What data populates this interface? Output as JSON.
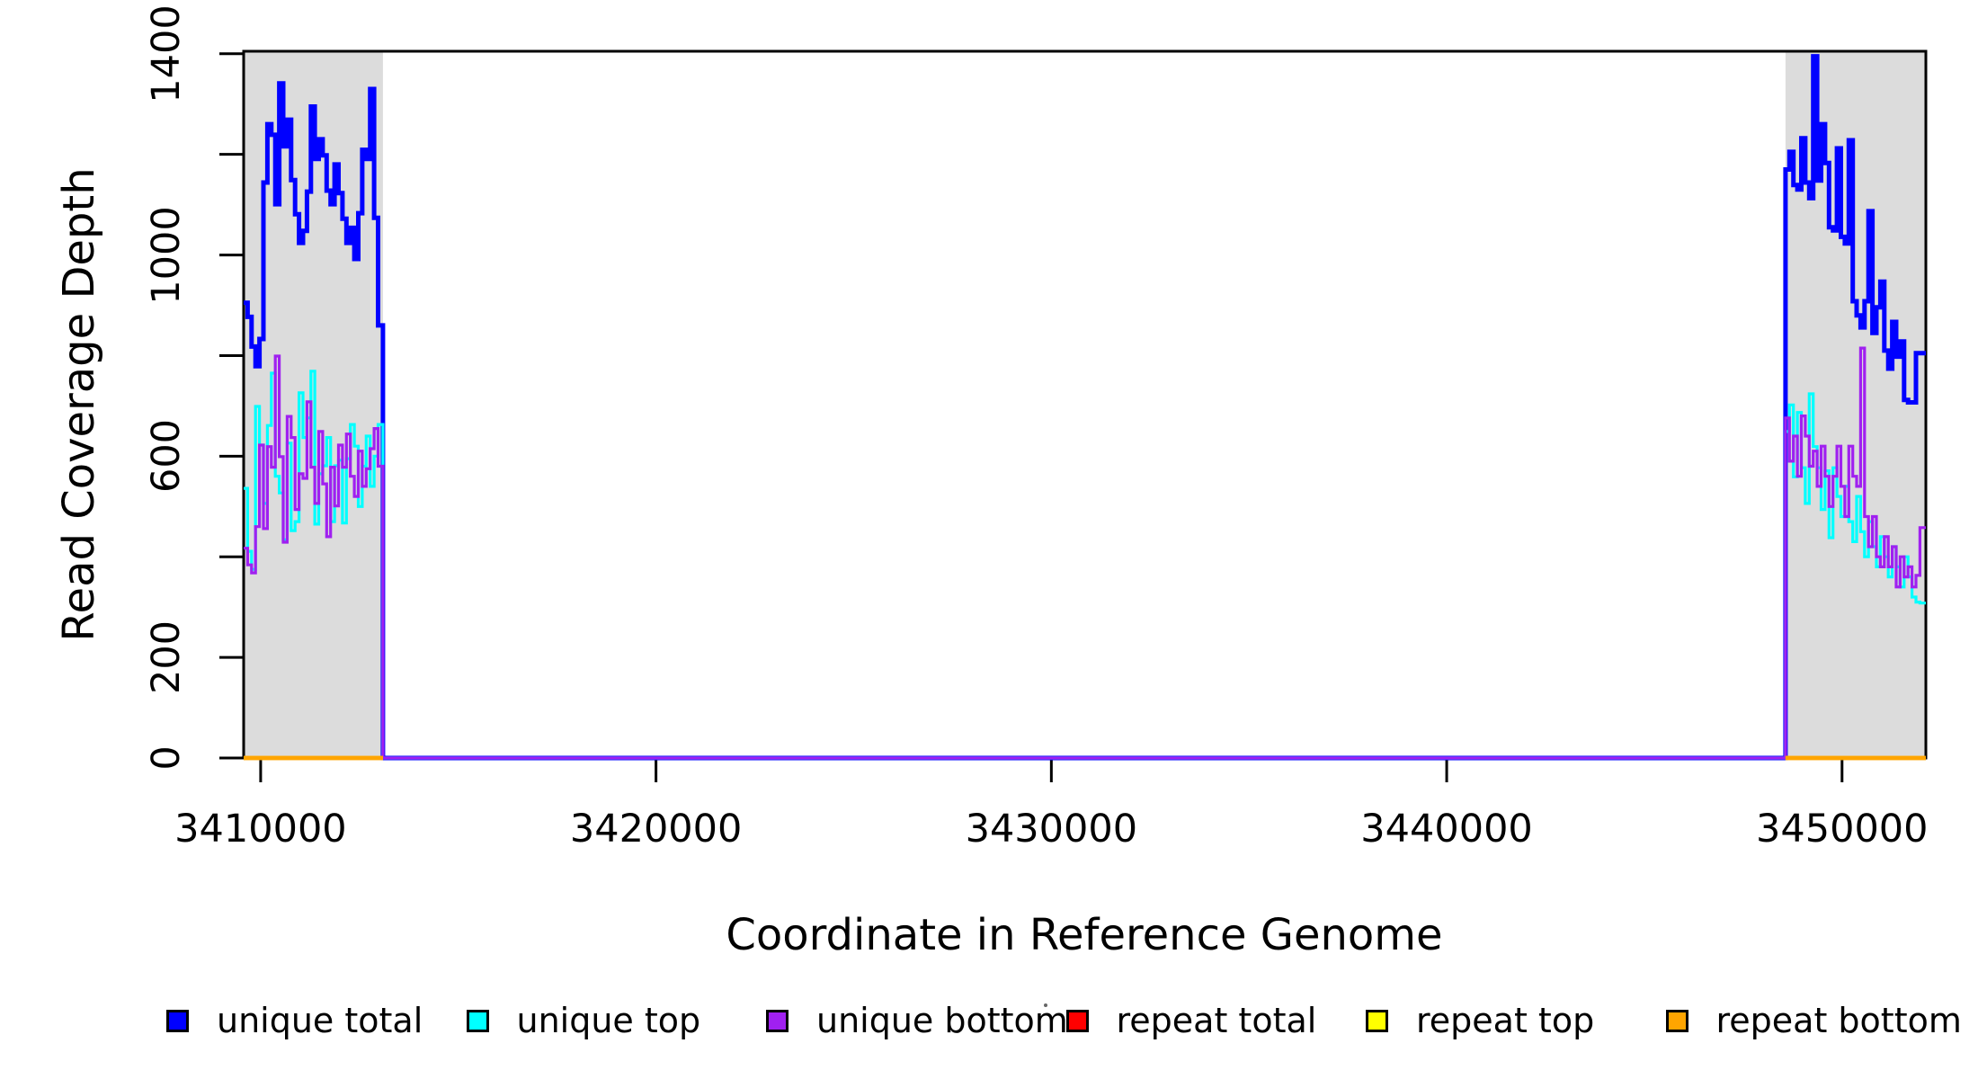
{
  "figure": {
    "background": "#ffffff",
    "frame_color": "#000000"
  },
  "axes": {
    "xlabel": "Coordinate in Reference Genome",
    "ylabel": "Read Coverage Depth",
    "x_tick_values": [
      3410000,
      3420000,
      3430000,
      3440000,
      3450000
    ],
    "x_tick_labels": [
      "3410000",
      "3420000",
      "3430000",
      "3440000",
      "3450000"
    ],
    "y_tick_values_all": [
      0,
      200,
      400,
      600,
      800,
      1000,
      1200,
      1400
    ],
    "y_tick_values_labeled": [
      0,
      200,
      600,
      1000,
      1400
    ],
    "y_tick_labels": [
      "0",
      "200",
      "600",
      "1000",
      "1400"
    ]
  },
  "chart_data": {
    "type": "line",
    "style": "step",
    "title": "",
    "xlabel": "Coordinate in Reference Genome",
    "ylabel": "Read Coverage Depth",
    "xlim": [
      3409570,
      3452120
    ],
    "ylim": [
      0,
      1405
    ],
    "grid": false,
    "legend_position": "bottom",
    "shaded_regions": [
      {
        "from": 3409570,
        "to": 3413093,
        "color": "#DCDCDC"
      },
      {
        "from": 3448570,
        "to": 3452120,
        "color": "#DCDCDC"
      }
    ],
    "flank_step_bp": 100,
    "left_flank_start": 3409570,
    "left_flank_end": 3413093,
    "right_flank_start": 3448570,
    "right_flank_end": 3452120,
    "series": [
      {
        "name": "unique total",
        "color": "#0000FF",
        "line_width": 5,
        "flanks_only": false,
        "middle_value": 0,
        "left_flank": [
          905,
          877,
          818,
          779,
          833,
          1144,
          1260,
          1239,
          1101,
          1341,
          1216,
          1269,
          1149,
          1081,
          1024,
          1048,
          1126,
          1295,
          1191,
          1230,
          1198,
          1128,
          1101,
          1180,
          1123,
          1072,
          1024,
          1054,
          992,
          1083,
          1209,
          1191,
          1330,
          1074,
          860
        ],
        "right_flank": [
          1170,
          1205,
          1139,
          1130,
          1232,
          1144,
          1113,
          1395,
          1148,
          1260,
          1183,
          1055,
          1049,
          1212,
          1036,
          1023,
          1228,
          908,
          880,
          856,
          908,
          1087,
          845,
          896,
          947,
          810,
          774,
          867,
          798,
          828,
          712,
          707,
          707,
          805,
          805
        ]
      },
      {
        "name": "unique top",
        "color": "#00FFFF",
        "line_width": 3.2,
        "flanks_only": false,
        "middle_value": 0,
        "left_flank": [
          536,
          411,
          375,
          699,
          622,
          506,
          661,
          765,
          560,
          527,
          434,
          626,
          452,
          470,
          726,
          637,
          676,
          769,
          465,
          565,
          581,
          637,
          470,
          581,
          592,
          467,
          595,
          663,
          620,
          500,
          580,
          640,
          540,
          600,
          663
        ],
        "right_flank": [
          649,
          702,
          559,
          687,
          577,
          506,
          724,
          619,
          577,
          494,
          571,
          438,
          577,
          520,
          480,
          540,
          470,
          430,
          520,
          450,
          400,
          470,
          420,
          380,
          440,
          400,
          360,
          420,
          380,
          340,
          400,
          360,
          320,
          310,
          308
        ]
      },
      {
        "name": "unique bottom",
        "color": "#A020F0",
        "line_width": 3.2,
        "flanks_only": false,
        "middle_value": 0,
        "left_flank": [
          417,
          384,
          368,
          460,
          622,
          456,
          619,
          578,
          799,
          599,
          429,
          679,
          637,
          494,
          565,
          556,
          708,
          578,
          506,
          649,
          545,
          440,
          578,
          501,
          622,
          578,
          644,
          560,
          520,
          610,
          540,
          575,
          615,
          655,
          580
        ],
        "right_flank": [
          676,
          590,
          640,
          560,
          680,
          640,
          580,
          610,
          540,
          620,
          560,
          500,
          560,
          620,
          540,
          480,
          620,
          560,
          540,
          815,
          480,
          420,
          480,
          400,
          380,
          440,
          380,
          420,
          340,
          400,
          360,
          380,
          340,
          363,
          458
        ]
      },
      {
        "name": "repeat total",
        "color": "#FF0000",
        "line_width": 4.5,
        "flanks_only": true,
        "left_flank": [
          0
        ],
        "right_flank": [
          0
        ]
      },
      {
        "name": "repeat top",
        "color": "#FFFF00",
        "line_width": 4.5,
        "flanks_only": true,
        "left_flank": [
          0
        ],
        "right_flank": [
          0
        ]
      },
      {
        "name": "repeat bottom",
        "color": "#FFA500",
        "line_width": 4.5,
        "flanks_only": true,
        "left_flank": [
          0
        ],
        "right_flank": [
          0
        ]
      }
    ]
  },
  "legend": {
    "items": [
      {
        "label": "unique total",
        "color": "#0000FF"
      },
      {
        "label": "unique top",
        "color": "#00FFFF"
      },
      {
        "label": "unique bottom",
        "color": "#A020F0"
      },
      {
        "label": "repeat total",
        "color": "#FF0000"
      },
      {
        "label": "repeat top",
        "color": "#FFFF00"
      },
      {
        "label": "repeat bottom",
        "color": "#FFA500"
      }
    ]
  }
}
